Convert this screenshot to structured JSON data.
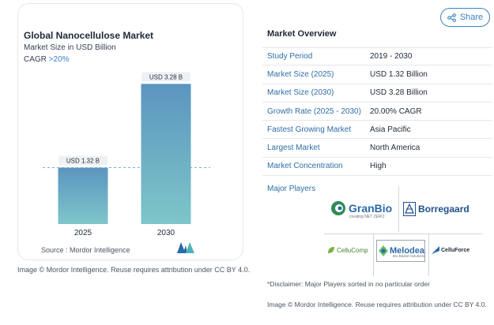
{
  "share": {
    "label": "Share",
    "icon": "share-icon"
  },
  "chart": {
    "title": "Global Nanocellulose Market",
    "subtitle": "Market Size in USD Billion",
    "cagr_prefix": "CAGR ",
    "cagr_value": ">20%",
    "source": "Source :  Mordor Intelligence",
    "attribution": "Image © Mordor Intelligence. Reuse requires attribution under CC BY 4.0."
  },
  "chart_data": {
    "type": "bar",
    "categories": [
      "2025",
      "2030"
    ],
    "values": [
      1.32,
      3.28
    ],
    "data_labels": [
      "USD 1.32 B",
      "USD 3.28 B"
    ],
    "title": "Global Nanocellulose Market",
    "subtitle": "Market Size in USD Billion",
    "ylim": [
      0,
      3.6
    ],
    "grid": false,
    "reference_line": "dashed line at 2025 value",
    "colors": {
      "bar_top": "#5b95bf",
      "bar_bottom": "#7ec6c9",
      "dashed_line": "#7aaed3"
    }
  },
  "overview": {
    "title": "Market Overview",
    "rows": [
      {
        "label": "Study Period",
        "value": "2019 - 2030"
      },
      {
        "label": "Market Size (2025)",
        "value": "USD 1.32 Billion"
      },
      {
        "label": "Market Size (2030)",
        "value": "USD 3.28 Billion"
      },
      {
        "label": "Growth Rate (2025 - 2030)",
        "value": "20.00% CAGR"
      },
      {
        "label": "Fastest Growing Market",
        "value": "Asia Pacific"
      },
      {
        "label": "Largest Market",
        "value": "North America"
      },
      {
        "label": "Market Concentration",
        "value": "High"
      }
    ]
  },
  "players": {
    "title": "Major Players",
    "logos": {
      "granbio": "GranBio",
      "granbio_tag": "creating NET ZERO",
      "borregaard": "Borregaard",
      "cellucomp": "CelluComp",
      "melodea": "Melodea",
      "melodea_sub": "Bio Based Solutions",
      "celluforce": "CelluForce"
    }
  },
  "disclaimer": "*Disclaimer: Major Players sorted in no particular order",
  "attribution_right": "Image © Mordor Intelligence. Reuse requires attribution under CC BY 4.0."
}
